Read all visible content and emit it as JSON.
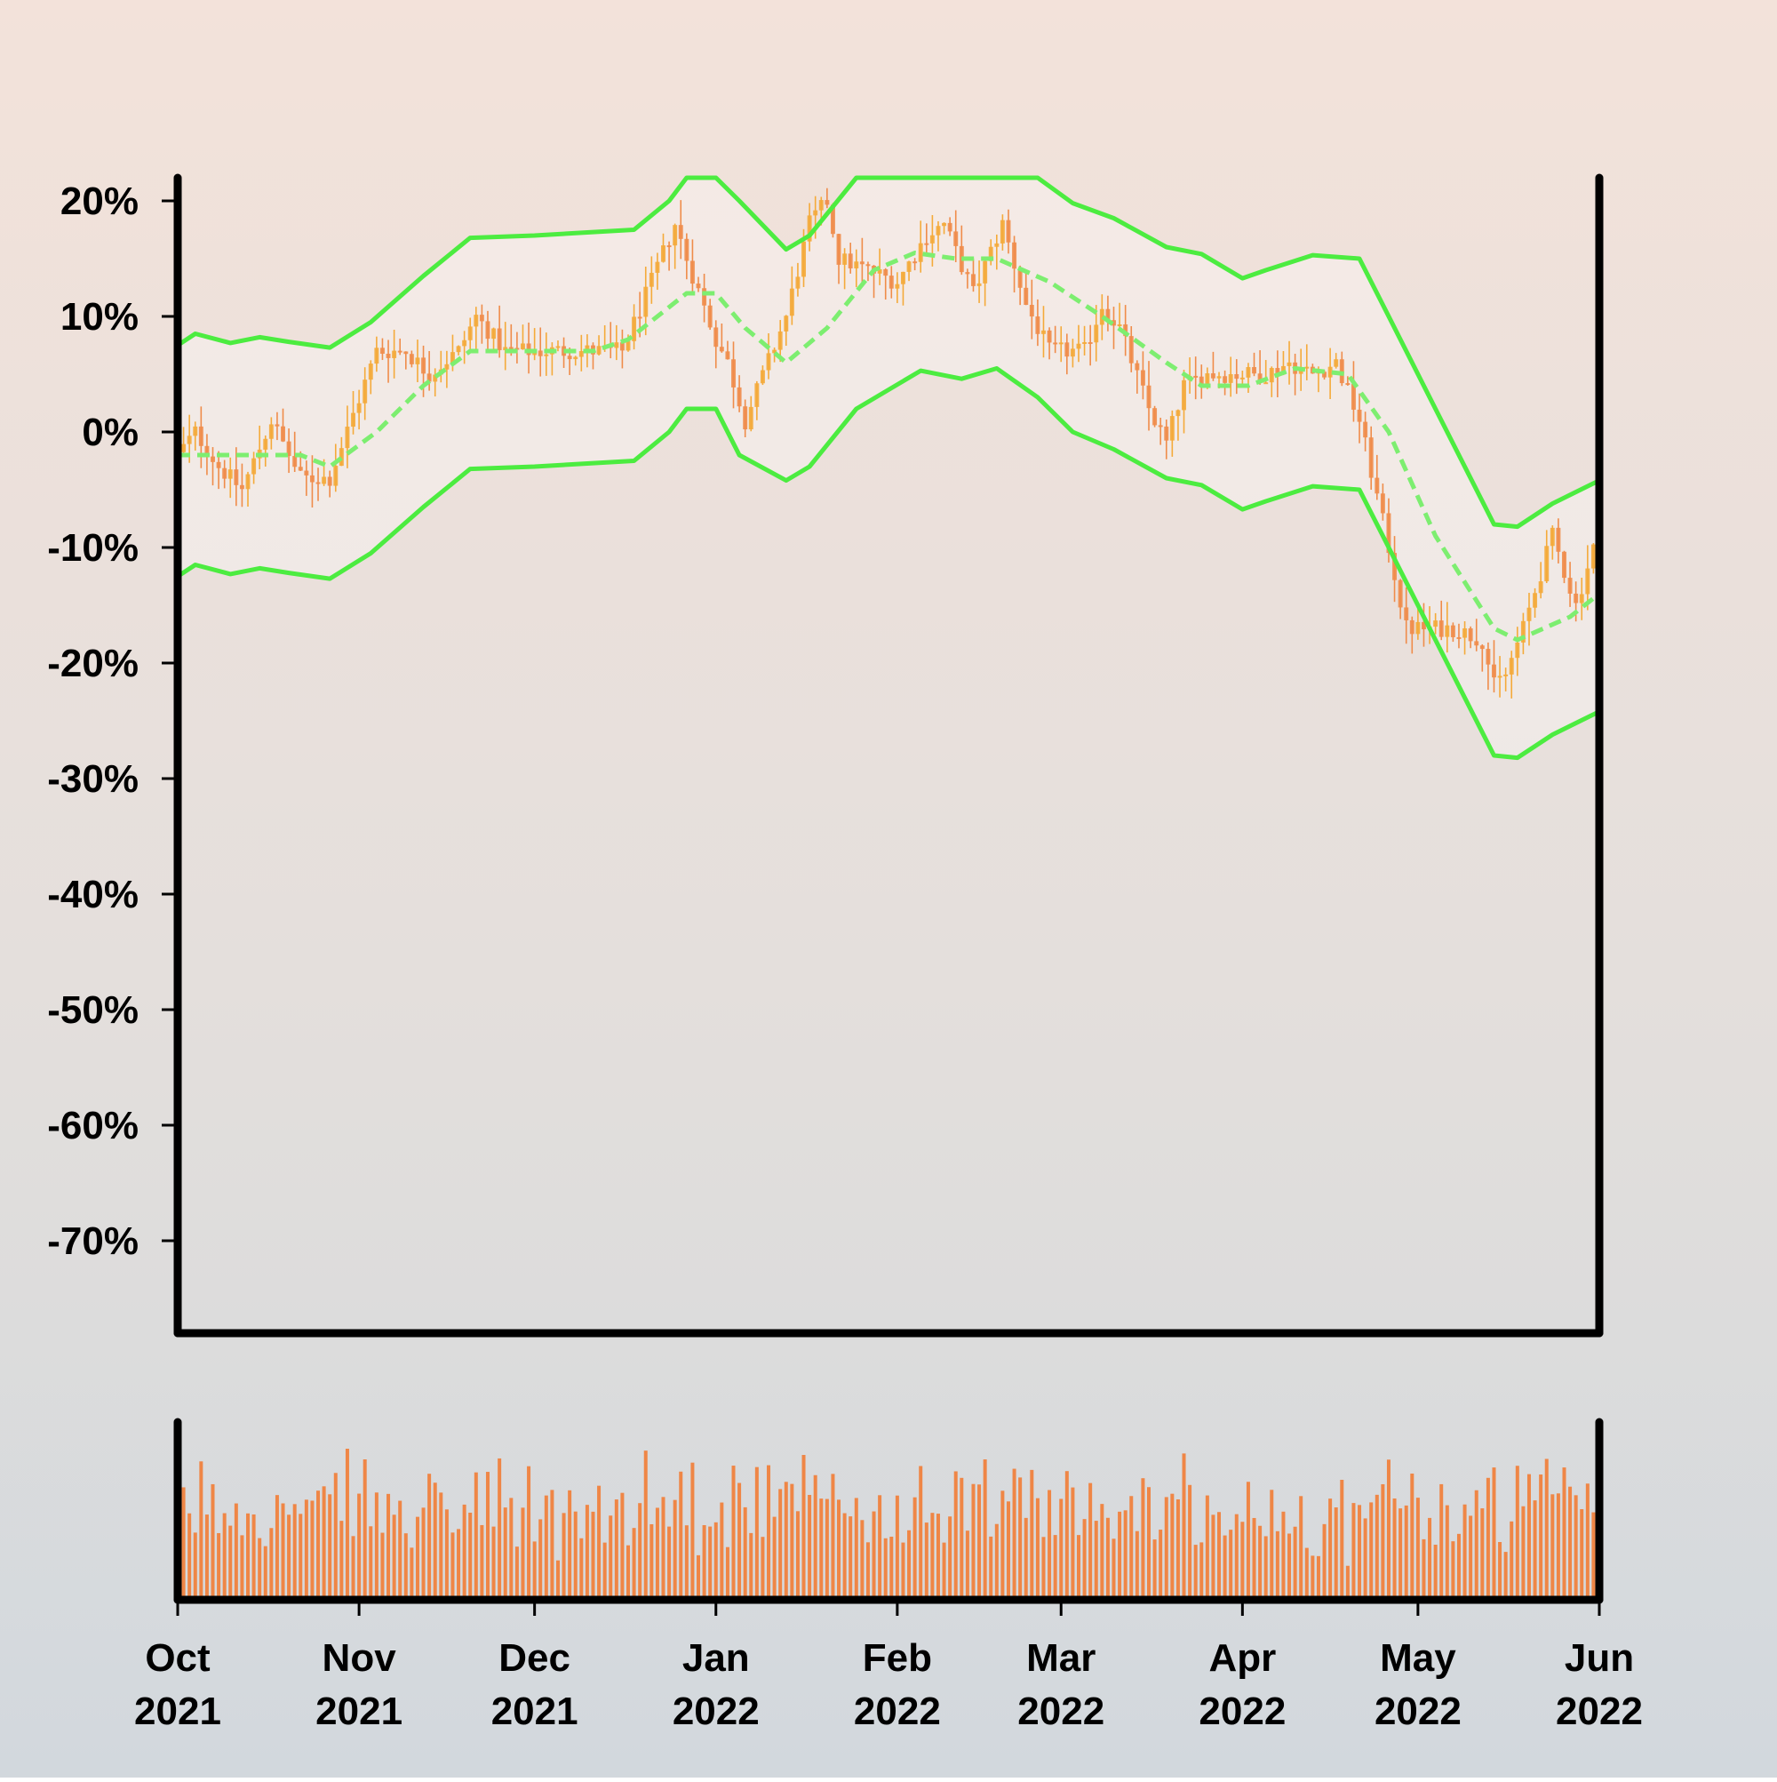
{
  "chart_data": {
    "type": "candlestick",
    "y_tick_labels": [
      "20%",
      "10%",
      "0%",
      "-10%",
      "-20%",
      "-30%",
      "-40%",
      "-50%",
      "-60%",
      "-70%"
    ],
    "y_tick_values": [
      20,
      10,
      0,
      -10,
      -20,
      -30,
      -40,
      -50,
      -60,
      -70
    ],
    "ylim": [
      -78,
      22
    ],
    "x_ticks": [
      {
        "date": "2021-10-01",
        "month": "Oct",
        "year": "2021"
      },
      {
        "date": "2021-11-01",
        "month": "Nov",
        "year": "2021"
      },
      {
        "date": "2021-12-01",
        "month": "Dec",
        "year": "2021"
      },
      {
        "date": "2022-01-01",
        "month": "Jan",
        "year": "2022"
      },
      {
        "date": "2022-02-01",
        "month": "Feb",
        "year": "2022"
      },
      {
        "date": "2022-03-01",
        "month": "Mar",
        "year": "2022"
      },
      {
        "date": "2022-04-01",
        "month": "Apr",
        "year": "2022"
      },
      {
        "date": "2022-05-01",
        "month": "May",
        "year": "2022"
      },
      {
        "date": "2022-06-01",
        "month": "Jun",
        "year": "2022"
      }
    ],
    "xlim": [
      "2021-10-01",
      "2022-06-01"
    ],
    "price_path": [
      [
        "2021-10-01",
        -2
      ],
      [
        "2021-10-04",
        0
      ],
      [
        "2021-10-08",
        -3
      ],
      [
        "2021-10-12",
        -5
      ],
      [
        "2021-10-17",
        1
      ],
      [
        "2021-10-22",
        -4
      ],
      [
        "2021-10-27",
        -4
      ],
      [
        "2021-11-04",
        7
      ],
      [
        "2021-11-09",
        7
      ],
      [
        "2021-11-13",
        5
      ],
      [
        "2021-11-18",
        7
      ],
      [
        "2021-11-21",
        10
      ],
      [
        "2021-11-26",
        7
      ],
      [
        "2021-12-06",
        7
      ],
      [
        "2021-12-11",
        7
      ],
      [
        "2021-12-16",
        7
      ],
      [
        "2021-12-21",
        13
      ],
      [
        "2021-12-25",
        18
      ],
      [
        "2021-12-27",
        15
      ],
      [
        "2022-01-01",
        8
      ],
      [
        "2022-01-03",
        6
      ],
      [
        "2022-01-06",
        1
      ],
      [
        "2022-01-13",
        10
      ],
      [
        "2022-01-17",
        18
      ],
      [
        "2022-01-20",
        20
      ],
      [
        "2022-01-22",
        15
      ],
      [
        "2022-01-27",
        14
      ],
      [
        "2022-02-01",
        13
      ],
      [
        "2022-02-06",
        17
      ],
      [
        "2022-02-09",
        18
      ],
      [
        "2022-02-14",
        12
      ],
      [
        "2022-02-19",
        18
      ],
      [
        "2022-02-23",
        11
      ],
      [
        "2022-02-27",
        7
      ],
      [
        "2022-03-05",
        7
      ],
      [
        "2022-03-08",
        11
      ],
      [
        "2022-03-11",
        9
      ],
      [
        "2022-03-16",
        2
      ],
      [
        "2022-03-19",
        -1
      ],
      [
        "2022-03-22",
        4
      ],
      [
        "2022-03-26",
        5
      ],
      [
        "2022-03-31",
        5
      ],
      [
        "2022-04-05",
        5
      ],
      [
        "2022-04-09",
        6
      ],
      [
        "2022-04-13",
        5
      ],
      [
        "2022-04-17",
        6
      ],
      [
        "2022-04-21",
        1
      ],
      [
        "2022-04-26",
        -10
      ],
      [
        "2022-04-29",
        -17
      ],
      [
        "2022-05-03",
        -17
      ],
      [
        "2022-05-07",
        -17
      ],
      [
        "2022-05-12",
        -18
      ],
      [
        "2022-05-14",
        -22
      ],
      [
        "2022-05-16",
        -21
      ],
      [
        "2022-05-19",
        -17
      ],
      [
        "2022-05-24",
        -9
      ],
      [
        "2022-05-28",
        -15
      ],
      [
        "2022-05-31",
        -10
      ],
      [
        "2022-06-01",
        -7
      ]
    ],
    "ma_path": [
      [
        "2021-10-01",
        -2
      ],
      [
        "2021-10-07",
        -2
      ],
      [
        "2021-10-12",
        -2
      ],
      [
        "2021-10-22",
        -2
      ],
      [
        "2021-10-27",
        -3
      ],
      [
        "2021-11-04",
        0
      ],
      [
        "2021-11-12",
        4
      ],
      [
        "2021-11-20",
        7
      ],
      [
        "2021-12-01",
        7
      ],
      [
        "2021-12-11",
        7
      ],
      [
        "2021-12-17",
        8
      ],
      [
        "2021-12-27",
        12
      ],
      [
        "2022-01-01",
        12
      ],
      [
        "2022-01-06",
        9
      ],
      [
        "2022-01-13",
        6
      ],
      [
        "2022-01-20",
        9
      ],
      [
        "2022-01-28",
        14
      ],
      [
        "2022-02-04",
        15.5
      ],
      [
        "2022-02-11",
        15
      ],
      [
        "2022-02-18",
        15
      ],
      [
        "2022-02-27",
        13
      ],
      [
        "2022-03-08",
        10
      ],
      [
        "2022-03-19",
        6
      ],
      [
        "2022-03-25",
        4
      ],
      [
        "2022-04-02",
        4
      ],
      [
        "2022-04-10",
        5.5
      ],
      [
        "2022-04-19",
        5
      ],
      [
        "2022-04-26",
        0
      ],
      [
        "2022-05-04",
        -9
      ],
      [
        "2022-05-14",
        -17
      ],
      [
        "2022-05-18",
        -18
      ],
      [
        "2022-05-27",
        -16
      ],
      [
        "2022-06-01",
        -14
      ]
    ],
    "upper_band": [
      [
        "2021-10-01",
        7.5
      ],
      [
        "2021-10-04",
        8.5
      ],
      [
        "2021-10-10",
        7.7
      ],
      [
        "2021-10-15",
        8.2
      ],
      [
        "2021-10-20",
        7.8
      ],
      [
        "2021-10-27",
        7.3
      ],
      [
        "2021-11-03",
        9.5
      ],
      [
        "2021-11-12",
        13.5
      ],
      [
        "2021-11-20",
        16.8
      ],
      [
        "2021-12-01",
        17
      ],
      [
        "2021-12-11",
        17.3
      ],
      [
        "2021-12-18",
        17.5
      ],
      [
        "2021-12-24",
        20
      ],
      [
        "2021-12-27",
        22
      ],
      [
        "2022-01-01",
        22
      ],
      [
        "2022-01-05",
        20
      ],
      [
        "2022-01-13",
        15.8
      ],
      [
        "2022-01-17",
        17
      ],
      [
        "2022-01-25",
        22
      ],
      [
        "2022-02-05",
        22
      ],
      [
        "2022-02-25",
        22
      ],
      [
        "2022-03-03",
        19.8
      ],
      [
        "2022-03-10",
        18.5
      ],
      [
        "2022-03-19",
        16
      ],
      [
        "2022-03-25",
        15.4
      ],
      [
        "2022-04-01",
        13.3
      ],
      [
        "2022-04-05",
        14
      ],
      [
        "2022-04-13",
        15.3
      ],
      [
        "2022-04-21",
        15
      ],
      [
        "2022-04-26",
        10
      ],
      [
        "2022-05-04",
        2
      ],
      [
        "2022-05-14",
        -8
      ],
      [
        "2022-05-18",
        -8.2
      ],
      [
        "2022-05-24",
        -6.2
      ],
      [
        "2022-06-01",
        -4.2
      ]
    ],
    "lower_band": [
      [
        "2021-10-01",
        -12.5
      ],
      [
        "2021-10-04",
        -11.5
      ],
      [
        "2021-10-10",
        -12.3
      ],
      [
        "2021-10-15",
        -11.8
      ],
      [
        "2021-10-20",
        -12.2
      ],
      [
        "2021-10-27",
        -12.7
      ],
      [
        "2021-11-03",
        -10.5
      ],
      [
        "2021-11-12",
        -6.5
      ],
      [
        "2021-11-20",
        -3.2
      ],
      [
        "2021-12-01",
        -3
      ],
      [
        "2021-12-11",
        -2.7
      ],
      [
        "2021-12-18",
        -2.5
      ],
      [
        "2021-12-24",
        0
      ],
      [
        "2021-12-27",
        2
      ],
      [
        "2022-01-01",
        2
      ],
      [
        "2022-01-05",
        -2
      ],
      [
        "2022-01-13",
        -4.2
      ],
      [
        "2022-01-17",
        -3
      ],
      [
        "2022-01-25",
        2
      ],
      [
        "2022-02-05",
        5.3
      ],
      [
        "2022-02-12",
        4.6
      ],
      [
        "2022-02-18",
        5.5
      ],
      [
        "2022-02-25",
        3
      ],
      [
        "2022-03-03",
        0
      ],
      [
        "2022-03-10",
        -1.5
      ],
      [
        "2022-03-19",
        -4
      ],
      [
        "2022-03-25",
        -4.6
      ],
      [
        "2022-04-01",
        -6.7
      ],
      [
        "2022-04-05",
        -6
      ],
      [
        "2022-04-13",
        -4.7
      ],
      [
        "2022-04-21",
        -5
      ],
      [
        "2022-04-26",
        -10
      ],
      [
        "2022-05-04",
        -18
      ],
      [
        "2022-05-14",
        -28
      ],
      [
        "2022-05-18",
        -28.2
      ],
      [
        "2022-05-24",
        -26.2
      ],
      [
        "2022-06-01",
        -24.2
      ]
    ],
    "colors": {
      "candle_up": "#f4aa3a",
      "candle_down": "#ef8c4a",
      "band": "#4cec40",
      "band_fill": "rgba(255,255,255,0.30)",
      "volume": "#ef8646",
      "axis": "#000000"
    },
    "grid": false,
    "legend": "none"
  }
}
